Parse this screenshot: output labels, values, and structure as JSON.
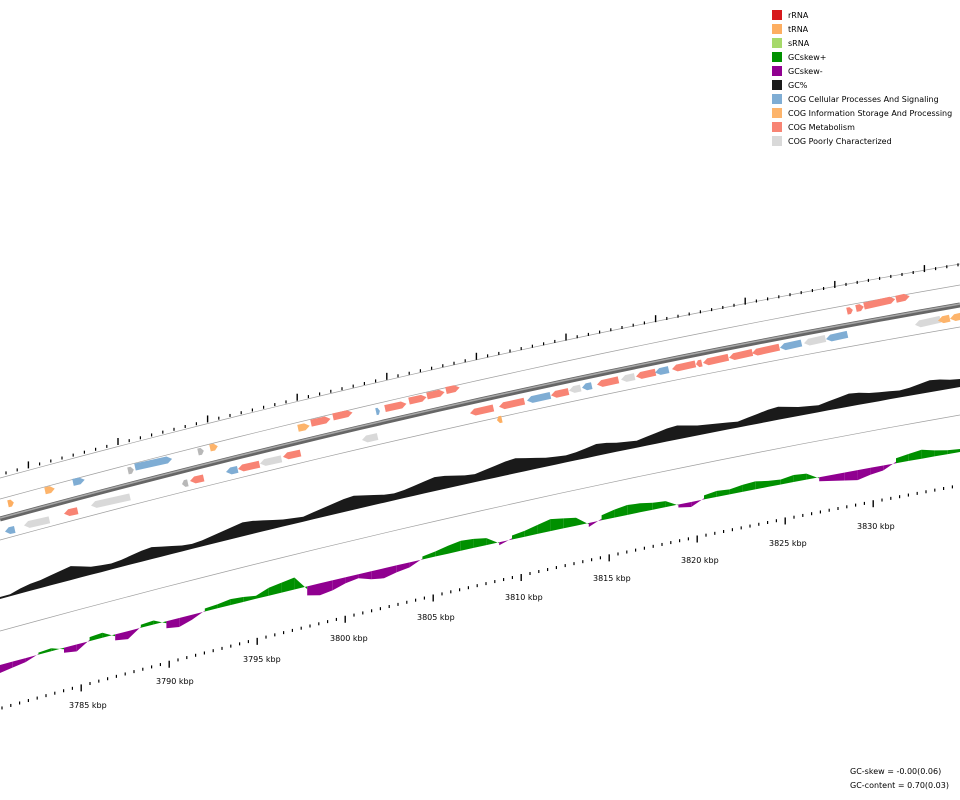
{
  "legend": [
    {
      "label": "rRNA",
      "color": "#d7191c"
    },
    {
      "label": "tRNA",
      "color": "#fdae61"
    },
    {
      "label": "sRNA",
      "color": "#a6d96a"
    },
    {
      "label": "GCskew+",
      "color": "#009000"
    },
    {
      "label": "GCskew-",
      "color": "#900090"
    },
    {
      "label": "GC%",
      "color": "#1a1a1a"
    },
    {
      "label": "COG Cellular Processes And Signaling",
      "color": "#7fadd4"
    },
    {
      "label": "COG Information Storage And Processing",
      "color": "#fdb46b"
    },
    {
      "label": "COG Metabolism",
      "color": "#f88474"
    },
    {
      "label": "COG Poorly Characterized",
      "color": "#d9d9d9"
    }
  ],
  "scale": {
    "labels": [
      "3785 kbp",
      "3790 kbp",
      "3795 kbp",
      "3800 kbp",
      "3805 kbp",
      "3810 kbp",
      "3815 kbp",
      "3820 kbp",
      "3825 kbp",
      "3830 kbp"
    ]
  },
  "stats": {
    "gc_skew": "GC-skew = -0.00(0.06)",
    "gc_content": "GC-content = 0.70(0.03)"
  },
  "colors": {
    "backbone": "#808080",
    "track_line": "#a0a0a0",
    "gc": "#1a1a1a",
    "skew_pos": "#009000",
    "skew_neg": "#900090",
    "unknown_gene": "#b8b8b8"
  }
}
